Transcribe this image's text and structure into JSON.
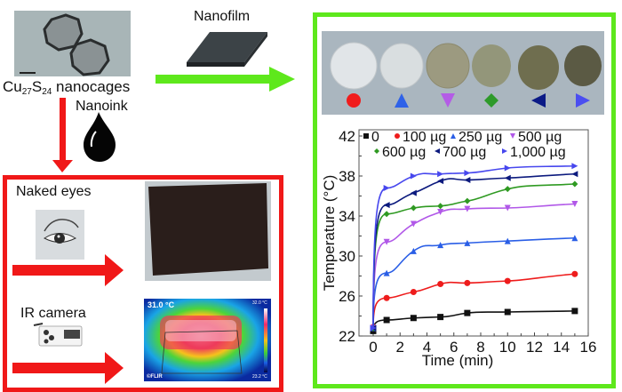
{
  "labels": {
    "material": "Cu27S24 nanocages",
    "material_base": "Cu",
    "material_sub1": "27",
    "material_mid": "S",
    "material_sub2": "24",
    "material_suffix": " nanocages",
    "nanofilm": "Nanofilm",
    "nanoink": "Nanoink",
    "naked_eyes": "Naked eyes",
    "ir_camera": "IR camera"
  },
  "ir_image": {
    "spot_temp": "31.0 °C",
    "scale_max": "32.0 °C",
    "scale_min": "23.2 °C",
    "brand": "©FLIR"
  },
  "colors": {
    "red_box": "#f01818",
    "green_box": "#5ee81c",
    "arrow_red": "#f01818",
    "arrow_green": "#5ee81c"
  },
  "sample_markers": [
    {
      "shape": "circle",
      "color": "#f01c1c"
    },
    {
      "shape": "triangle-up",
      "color": "#2f62e8"
    },
    {
      "shape": "triangle-down",
      "color": "#b45ce6"
    },
    {
      "shape": "diamond",
      "color": "#2e9a2a"
    },
    {
      "shape": "triangle-left",
      "color": "#0b1a86"
    },
    {
      "shape": "triangle-right",
      "color": "#4b4ef0"
    }
  ],
  "chart_data": {
    "type": "line",
    "title": "",
    "xlabel": "Time (min)",
    "ylabel": "Temperature (°C)",
    "xlim": [
      -1,
      16
    ],
    "ylim": [
      22,
      42.5
    ],
    "xticks": [
      0,
      2,
      4,
      6,
      8,
      10,
      12,
      14,
      16
    ],
    "yticks": [
      22,
      26,
      30,
      34,
      38,
      42
    ],
    "grid": false,
    "legend_position": "top-inside",
    "x": [
      0,
      1,
      3,
      5,
      7,
      10,
      15
    ],
    "series": [
      {
        "name": "0",
        "marker": "square",
        "color": "#111111",
        "values": [
          22.5,
          23.6,
          23.8,
          23.9,
          24.3,
          24.4,
          24.5
        ]
      },
      {
        "name": "100 µg",
        "marker": "circle",
        "color": "#ee1c1c",
        "values": [
          22.9,
          25.8,
          26.4,
          27.2,
          27.3,
          27.5,
          28.2
        ]
      },
      {
        "name": "250 µg",
        "marker": "triangle-up",
        "color": "#2a5ee6",
        "values": [
          22.8,
          28.3,
          30.5,
          31.1,
          31.3,
          31.5,
          31.8
        ]
      },
      {
        "name": "500 µg",
        "marker": "triangle-down",
        "color": "#b158e8",
        "values": [
          22.8,
          31.4,
          33.2,
          34.4,
          34.7,
          34.8,
          35.2
        ]
      },
      {
        "name": "600 µg",
        "marker": "diamond",
        "color": "#2f9a22",
        "values": [
          22.8,
          34.2,
          34.8,
          35.0,
          35.5,
          36.7,
          37.2
        ]
      },
      {
        "name": "700 µg",
        "marker": "triangle-left",
        "color": "#0c1a7e",
        "values": [
          22.8,
          35.1,
          36.3,
          37.5,
          37.6,
          37.8,
          38.2
        ]
      },
      {
        "name": "1,000 µg",
        "marker": "triangle-right",
        "color": "#4747ee",
        "values": [
          22.8,
          36.8,
          38.0,
          38.2,
          38.3,
          38.8,
          39.0
        ]
      }
    ]
  }
}
